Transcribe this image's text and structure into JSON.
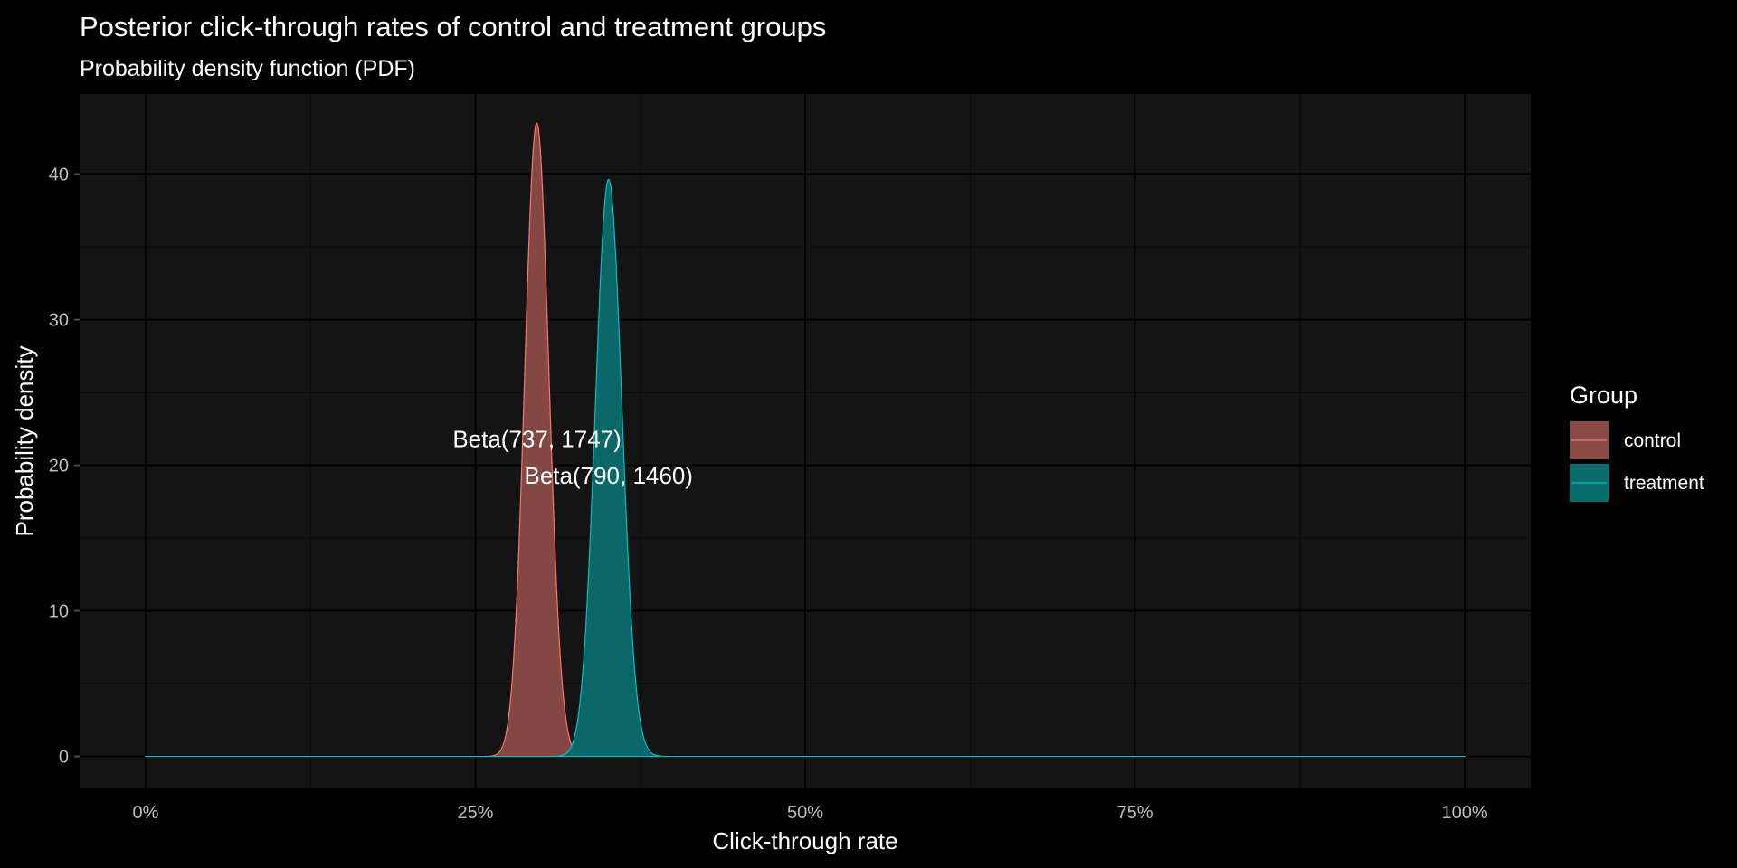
{
  "chart_data": {
    "type": "area",
    "title": "Posterior click-through rates of control and treatment groups",
    "subtitle": "Probability density function (PDF)",
    "xlabel": "Click-through rate",
    "ylabel": "Probability density",
    "xlim": [
      0,
      1
    ],
    "ylim": [
      0,
      44
    ],
    "x_ticks": [
      0,
      0.25,
      0.5,
      0.75,
      1
    ],
    "x_tick_labels": [
      "0%",
      "25%",
      "50%",
      "75%",
      "100%"
    ],
    "y_ticks": [
      0,
      10,
      20,
      30,
      40
    ],
    "y_tick_labels": [
      "0",
      "10",
      "20",
      "30",
      "40"
    ],
    "grid": true,
    "legend": {
      "title": "Group",
      "position": "right"
    },
    "series": [
      {
        "name": "control",
        "distribution": "beta",
        "alpha": 737,
        "beta": 1747,
        "color": "#f8766d",
        "fill": "#8a4a46"
      },
      {
        "name": "treatment",
        "distribution": "beta",
        "alpha": 790,
        "beta": 1460,
        "color": "#00bfc4",
        "fill": "#0b6b6d"
      }
    ],
    "annotations": [
      {
        "label": "Beta(737, 1747)",
        "x": 0.2967,
        "y": 21.8
      },
      {
        "label": "Beta(790, 1460)",
        "x": 0.351,
        "y": 19.3
      }
    ],
    "colors": {
      "background": "#000000",
      "panel": "#141414",
      "grid_major": "#000000",
      "grid_minor": "#0b0b0b"
    }
  }
}
